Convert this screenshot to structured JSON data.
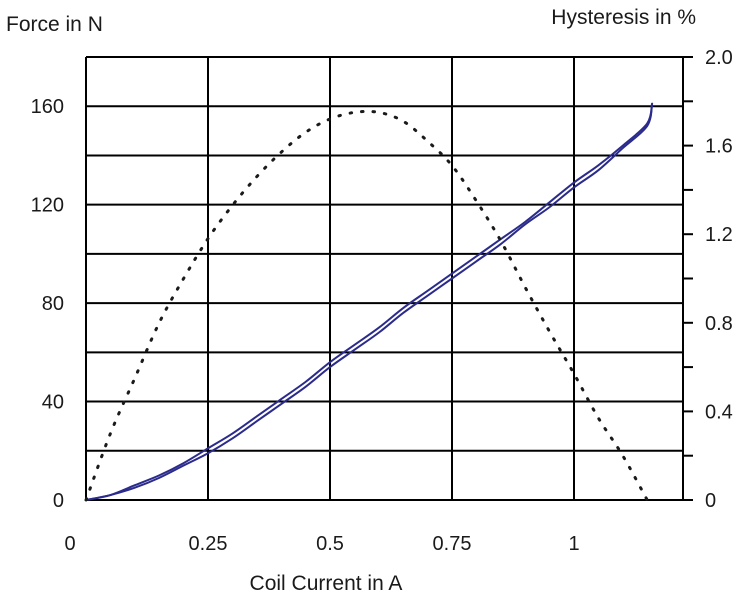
{
  "chart_data": {
    "type": "line",
    "title": "",
    "xlabel": "Coil Current in A",
    "ylabel_left": "Force in N",
    "ylabel_right": "Hysteresis in %",
    "xlim": [
      0,
      1.2
    ],
    "ylim_left": [
      0,
      180
    ],
    "ylim_right": [
      0,
      2.0
    ],
    "x_ticks": [
      0,
      0.25,
      0.5,
      0.75,
      1
    ],
    "x_tick_labels": [
      "0",
      "0.25",
      "0.5",
      "0.75",
      "1"
    ],
    "y_left_ticks": [
      0,
      40,
      80,
      120,
      160
    ],
    "y_left_tick_labels": [
      "0",
      "40",
      "80",
      "120",
      "160"
    ],
    "y_right_ticks": [
      0,
      0.4,
      0.8,
      1.2,
      1.6,
      2.0
    ],
    "y_right_tick_labels": [
      "0",
      "0.4",
      "0.8",
      "1.2",
      "1.6",
      "2.0"
    ],
    "grid": true,
    "colors": {
      "force_line": "#2b2b8c",
      "hysteresis_dots": "#1a1a1a",
      "grid": "#000000"
    },
    "series": [
      {
        "axis": "left",
        "style": "double-line",
        "x": [
          0,
          0.05,
          0.1,
          0.15,
          0.2,
          0.25,
          0.3,
          0.35,
          0.4,
          0.45,
          0.5,
          0.55,
          0.6,
          0.65,
          0.7,
          0.75,
          0.8,
          0.85,
          0.9,
          0.95,
          1.0,
          1.05,
          1.1,
          1.15,
          1.16
        ],
        "values_rising": [
          0,
          2,
          5,
          9,
          14,
          19,
          25,
          32,
          39,
          46,
          54,
          61,
          68,
          76,
          83,
          90,
          97,
          104,
          112,
          119,
          127,
          134,
          143,
          152,
          161
        ],
        "values_falling": [
          0,
          2,
          6,
          10,
          15,
          21,
          27,
          34,
          41,
          48,
          56,
          63,
          70,
          78,
          85,
          92,
          99,
          106,
          113,
          121,
          129,
          136,
          144,
          153,
          161
        ]
      },
      {
        "axis": "right",
        "style": "dotted",
        "x": [
          0,
          0.05,
          0.1,
          0.15,
          0.2,
          0.25,
          0.3,
          0.35,
          0.4,
          0.45,
          0.5,
          0.55,
          0.6,
          0.65,
          0.7,
          0.75,
          0.8,
          0.85,
          0.9,
          0.95,
          1.0,
          1.05,
          1.1,
          1.15
        ],
        "values": [
          0,
          0.3,
          0.55,
          0.8,
          1.0,
          1.18,
          1.33,
          1.46,
          1.57,
          1.66,
          1.72,
          1.75,
          1.75,
          1.71,
          1.62,
          1.51,
          1.35,
          1.17,
          0.96,
          0.76,
          0.57,
          0.37,
          0.2,
          0
        ]
      }
    ]
  }
}
